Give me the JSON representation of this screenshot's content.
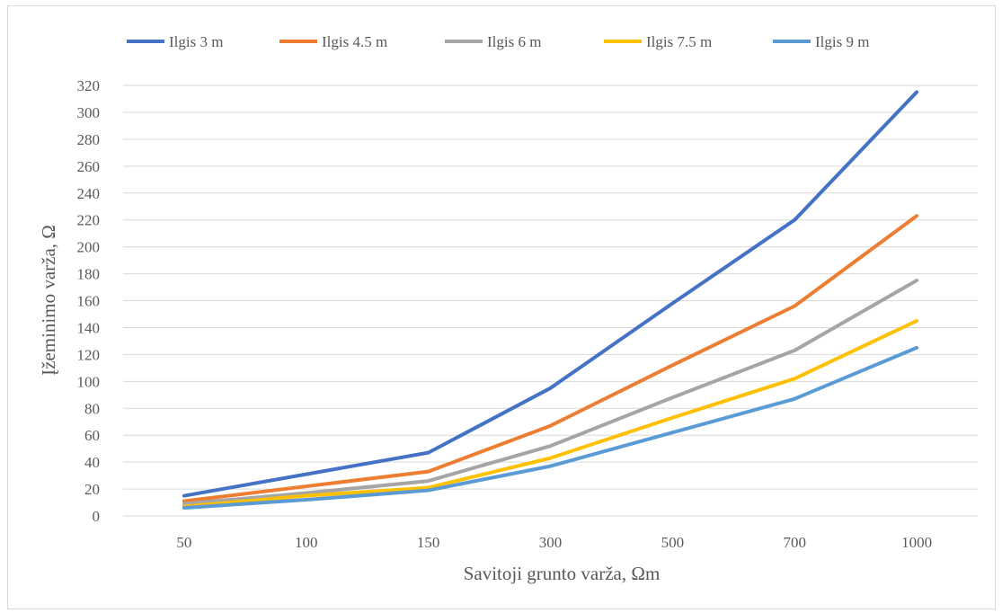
{
  "chart_data": {
    "type": "line",
    "title": "",
    "xlabel": "Savitoji grunto varža, Ωm",
    "ylabel": "Įžeminimo varža, Ω",
    "categories": [
      "50",
      "100",
      "150",
      "300",
      "500",
      "700",
      "1000"
    ],
    "ylim": [
      0,
      320
    ],
    "ytick_step": 20,
    "yticks": [
      "0",
      "20",
      "40",
      "60",
      "80",
      "100",
      "120",
      "140",
      "160",
      "180",
      "200",
      "220",
      "240",
      "260",
      "280",
      "300",
      "320"
    ],
    "grid": true,
    "legend_position": "top",
    "series": [
      {
        "name": "Ilgis 3 m",
        "color": "#4472C4",
        "values": [
          15,
          31,
          47,
          95,
          158,
          220,
          315
        ]
      },
      {
        "name": "Ilgis 4.5 m",
        "color": "#ED7D31",
        "values": [
          11,
          22,
          33,
          67,
          112,
          156,
          223
        ]
      },
      {
        "name": "Ilgis 6 m",
        "color": "#A5A5A5",
        "values": [
          9,
          17,
          26,
          52,
          88,
          123,
          175
        ]
      },
      {
        "name": "Ilgis 7.5 m",
        "color": "#FFC000",
        "values": [
          7,
          15,
          21,
          43,
          73,
          102,
          145
        ]
      },
      {
        "name": "Ilgis 9 m",
        "color": "#5B9BD5",
        "values": [
          6,
          12,
          19,
          37,
          62,
          87,
          125
        ]
      }
    ]
  }
}
